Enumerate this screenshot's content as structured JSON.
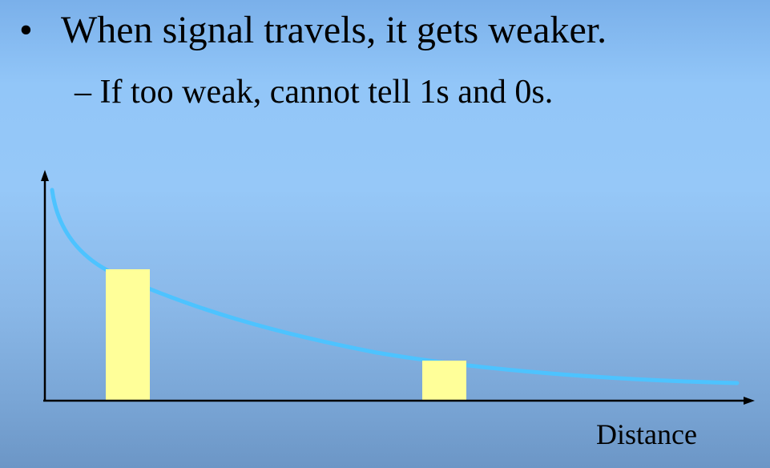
{
  "slide": {
    "bullet_marker": "•",
    "bullet_text": "When signal travels, it gets weaker.",
    "sub_marker": "–",
    "sub_text": "If too weak, cannot tell 1s and 0s."
  },
  "diagram": {
    "x_axis_label": "Distance",
    "curve_color": "#4dc3ff",
    "bar_color": "#ffff99",
    "axis_color": "#000000"
  }
}
